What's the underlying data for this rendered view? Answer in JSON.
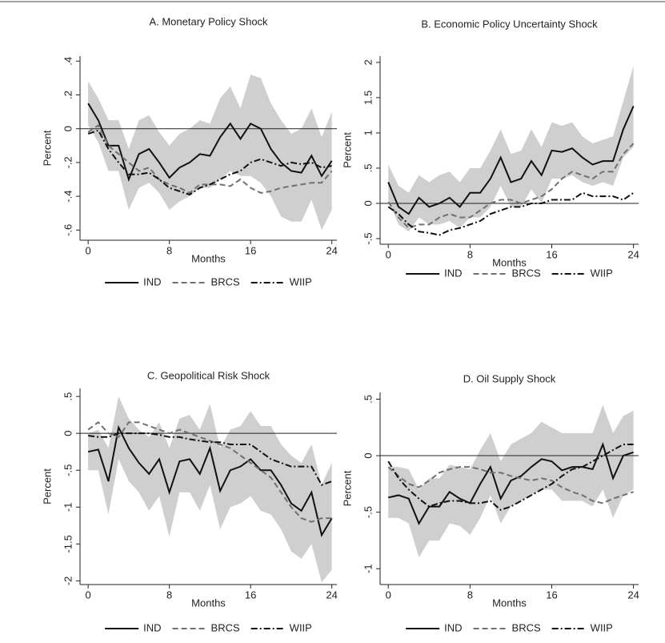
{
  "chart_data": [
    {
      "type": "line",
      "title": "A. Monetary Policy Shock",
      "xlabel": "Months",
      "ylabel": "Percent",
      "x": [
        0,
        1,
        2,
        3,
        4,
        5,
        6,
        7,
        8,
        9,
        10,
        11,
        12,
        13,
        14,
        15,
        16,
        17,
        18,
        19,
        20,
        21,
        22,
        23,
        24
      ],
      "xlim": [
        -0.8,
        24.5
      ],
      "xticks": [
        0,
        8,
        16,
        24
      ],
      "ylim": [
        -0.66,
        0.43
      ],
      "yticks": [
        {
          "value": -0.6,
          "label": "-.6"
        },
        {
          "value": -0.4,
          "label": "-.4"
        },
        {
          "value": -0.2,
          "label": "-.2"
        },
        0,
        {
          "value": 0.2,
          "label": ".2"
        },
        {
          "value": 0.4,
          "label": ".4"
        }
      ],
      "reference_line": 0,
      "band": {
        "color": "#cfcfcf",
        "upper": [
          0.28,
          0.18,
          0.05,
          0.05,
          -0.12,
          0.05,
          0.08,
          -0.02,
          -0.1,
          -0.03,
          0,
          0.05,
          0.03,
          0.18,
          0.25,
          0.12,
          0.32,
          0.3,
          0.15,
          0.05,
          -0.03,
          0,
          0.12,
          -0.05,
          0.1
        ],
        "lower": [
          0.02,
          -0.08,
          -0.25,
          -0.25,
          -0.48,
          -0.35,
          -0.32,
          -0.38,
          -0.48,
          -0.43,
          -0.4,
          -0.35,
          -0.35,
          -0.3,
          -0.25,
          -0.28,
          -0.28,
          -0.32,
          -0.4,
          -0.52,
          -0.55,
          -0.55,
          -0.42,
          -0.6,
          -0.48
        ]
      },
      "series": [
        {
          "name": "IND",
          "color": "#111111",
          "dash": "solid",
          "values": [
            0.15,
            0.05,
            -0.1,
            -0.1,
            -0.3,
            -0.15,
            -0.12,
            -0.2,
            -0.29,
            -0.23,
            -0.2,
            -0.15,
            -0.16,
            -0.05,
            0.03,
            -0.06,
            0.03,
            0,
            -0.12,
            -0.2,
            -0.25,
            -0.26,
            -0.16,
            -0.28,
            -0.19
          ]
        },
        {
          "name": "BRCS",
          "color": "#707070",
          "dash": "dashed",
          "values": [
            -0.02,
            0.02,
            -0.1,
            -0.15,
            -0.2,
            -0.25,
            -0.23,
            -0.3,
            -0.33,
            -0.35,
            -0.38,
            -0.33,
            -0.33,
            -0.33,
            -0.34,
            -0.3,
            -0.35,
            -0.38,
            -0.37,
            -0.35,
            -0.34,
            -0.33,
            -0.32,
            -0.32,
            -0.25
          ]
        },
        {
          "name": "WIIP",
          "color": "#111111",
          "dash": "dashdot",
          "values": [
            -0.03,
            -0.01,
            -0.12,
            -0.2,
            -0.27,
            -0.27,
            -0.26,
            -0.3,
            -0.35,
            -0.37,
            -0.39,
            -0.35,
            -0.33,
            -0.3,
            -0.27,
            -0.25,
            -0.2,
            -0.18,
            -0.2,
            -0.22,
            -0.2,
            -0.21,
            -0.2,
            -0.23,
            -0.22
          ]
        }
      ]
    },
    {
      "type": "line",
      "title": "B. Economic Policy Uncertainty Shock",
      "xlabel": "Months",
      "ylabel": "Percent",
      "x": [
        0,
        1,
        2,
        3,
        4,
        5,
        6,
        7,
        8,
        9,
        10,
        11,
        12,
        13,
        14,
        15,
        16,
        17,
        18,
        19,
        20,
        21,
        22,
        23,
        24
      ],
      "xlim": [
        -0.8,
        24.5
      ],
      "xticks": [
        0,
        8,
        16,
        24
      ],
      "ylim": [
        -0.58,
        2.09
      ],
      "yticks": [
        {
          "value": -0.5,
          "label": "-.5"
        },
        0,
        {
          "value": 0.5,
          "label": ".5"
        },
        1,
        1.5,
        2
      ],
      "reference_line": 0,
      "band": {
        "color": "#cfcfcf",
        "upper": [
          0.55,
          0.25,
          0.15,
          0.4,
          0.3,
          0.4,
          0.45,
          0.3,
          0.5,
          0.5,
          0.75,
          1.05,
          0.7,
          0.75,
          1.05,
          0.8,
          1.15,
          1.1,
          1.15,
          0.95,
          0.85,
          0.9,
          0.95,
          1.45,
          1.95
        ],
        "lower": [
          0.05,
          -0.3,
          -0.4,
          -0.2,
          -0.3,
          -0.3,
          -0.25,
          -0.35,
          -0.2,
          -0.2,
          -0.05,
          0.25,
          -0.05,
          -0.05,
          0.2,
          0,
          0.35,
          0.35,
          0.4,
          0.3,
          0.25,
          0.3,
          0.25,
          0.65,
          0.8
        ]
      },
      "series": [
        {
          "name": "IND",
          "color": "#111111",
          "dash": "solid",
          "values": [
            0.3,
            -0.05,
            -0.15,
            0.08,
            -0.05,
            0,
            0.08,
            -0.05,
            0.15,
            0.15,
            0.35,
            0.65,
            0.3,
            0.35,
            0.6,
            0.4,
            0.75,
            0.73,
            0.78,
            0.65,
            0.55,
            0.6,
            0.6,
            1.05,
            1.38
          ]
        },
        {
          "name": "BRCS",
          "color": "#707070",
          "dash": "dashed",
          "values": [
            0.02,
            -0.2,
            -0.35,
            -0.3,
            -0.3,
            -0.2,
            -0.15,
            -0.2,
            -0.2,
            -0.1,
            0,
            0.05,
            0.05,
            0,
            0.05,
            0.1,
            0.2,
            0.35,
            0.45,
            0.4,
            0.35,
            0.45,
            0.45,
            0.7,
            0.85
          ]
        },
        {
          "name": "WIIP",
          "color": "#111111",
          "dash": "dashdot",
          "values": [
            -0.05,
            -0.15,
            -0.3,
            -0.4,
            -0.42,
            -0.45,
            -0.38,
            -0.35,
            -0.3,
            -0.25,
            -0.15,
            -0.1,
            -0.05,
            -0.05,
            0,
            0,
            0.05,
            0.05,
            0.05,
            0.15,
            0.1,
            0.1,
            0.1,
            0.05,
            0.15
          ]
        }
      ]
    },
    {
      "type": "line",
      "title": "C. Geopolitical Risk Shock",
      "xlabel": "Months",
      "ylabel": "Percent",
      "x": [
        0,
        1,
        2,
        3,
        4,
        5,
        6,
        7,
        8,
        9,
        10,
        11,
        12,
        13,
        14,
        15,
        16,
        17,
        18,
        19,
        20,
        21,
        22,
        23,
        24
      ],
      "xlim": [
        -0.8,
        24.5
      ],
      "xticks": [
        0,
        8,
        16,
        24
      ],
      "ylim": [
        -2.05,
        0.61
      ],
      "yticks": [
        -2,
        -1.5,
        -1,
        {
          "value": -0.5,
          "label": "-.5"
        },
        0,
        {
          "value": 0.5,
          "label": ".5"
        }
      ],
      "reference_line": 0,
      "band": {
        "color": "#cfcfcf",
        "upper": [
          0,
          0.05,
          -0.2,
          0.5,
          0.2,
          0.05,
          -0.05,
          0.15,
          -0.2,
          0.2,
          0.25,
          0.05,
          0.4,
          -0.2,
          0.05,
          0.1,
          0.3,
          0.1,
          0.1,
          -0.15,
          -0.3,
          -0.4,
          -0.15,
          -0.7,
          -0.4
        ],
        "lower": [
          -0.5,
          -0.5,
          -1.1,
          -0.35,
          -0.65,
          -0.8,
          -1.05,
          -0.85,
          -1.4,
          -0.8,
          -0.8,
          -1.05,
          -0.7,
          -1.3,
          -1,
          -0.95,
          -0.85,
          -1.05,
          -1.1,
          -1.3,
          -1.6,
          -1.7,
          -1.5,
          -2.02,
          -1.85
        ]
      },
      "series": [
        {
          "name": "IND",
          "color": "#111111",
          "dash": "solid",
          "values": [
            -0.25,
            -0.22,
            -0.65,
            0.08,
            -0.2,
            -0.4,
            -0.55,
            -0.35,
            -0.8,
            -0.38,
            -0.35,
            -0.55,
            -0.2,
            -0.78,
            -0.5,
            -0.45,
            -0.35,
            -0.5,
            -0.5,
            -0.7,
            -0.95,
            -1.05,
            -0.8,
            -1.38,
            -1.15
          ]
        },
        {
          "name": "BRCS",
          "color": "#707070",
          "dash": "dashed",
          "values": [
            0.05,
            0.15,
            0,
            -0.05,
            0.15,
            0.15,
            0.1,
            0.05,
            0,
            0.05,
            0,
            -0.05,
            -0.1,
            -0.15,
            -0.2,
            -0.3,
            -0.4,
            -0.5,
            -0.6,
            -0.8,
            -1,
            -1.15,
            -1.2,
            -1.15,
            -1.15
          ]
        },
        {
          "name": "WIIP",
          "color": "#111111",
          "dash": "dashdot",
          "values": [
            -0.03,
            -0.05,
            -0.05,
            0,
            0,
            0,
            0,
            -0.02,
            -0.05,
            -0.05,
            -0.08,
            -0.1,
            -0.12,
            -0.12,
            -0.15,
            -0.15,
            -0.15,
            -0.25,
            -0.35,
            -0.4,
            -0.45,
            -0.45,
            -0.45,
            -0.7,
            -0.65
          ]
        }
      ]
    },
    {
      "type": "line",
      "title": "D. Oil Supply Shock",
      "xlabel": "Months",
      "ylabel": "Percent",
      "x": [
        0,
        1,
        2,
        3,
        4,
        5,
        6,
        7,
        8,
        9,
        10,
        11,
        12,
        13,
        14,
        15,
        16,
        17,
        18,
        19,
        20,
        21,
        22,
        23,
        24
      ],
      "xlim": [
        -0.8,
        24.5
      ],
      "xticks": [
        0,
        8,
        16,
        24
      ],
      "ylim": [
        -1.14,
        0.56
      ],
      "yticks": [
        -1,
        {
          "value": -0.5,
          "label": "-.5"
        },
        0,
        {
          "value": 0.5,
          "label": ".5"
        }
      ],
      "reference_line": 0,
      "band": {
        "color": "#cfcfcf",
        "upper": [
          -0.1,
          -0.1,
          -0.12,
          -0.3,
          -0.2,
          -0.2,
          -0.08,
          -0.1,
          -0.12,
          0.05,
          0.2,
          -0.05,
          0.1,
          0.15,
          0.2,
          0.3,
          0.25,
          0.2,
          0.2,
          0.2,
          0.2,
          0.45,
          0.2,
          0.35,
          0.4
        ],
        "lower": [
          -0.55,
          -0.55,
          -0.6,
          -0.9,
          -0.75,
          -0.75,
          -0.6,
          -0.62,
          -0.7,
          -0.55,
          -0.35,
          -0.6,
          -0.45,
          -0.4,
          -0.35,
          -0.3,
          -0.3,
          -0.4,
          -0.4,
          -0.4,
          -0.45,
          -0.3,
          -0.55,
          -0.35,
          -0.3
        ]
      },
      "series": [
        {
          "name": "IND",
          "color": "#111111",
          "dash": "solid",
          "values": [
            -0.37,
            -0.35,
            -0.38,
            -0.6,
            -0.45,
            -0.45,
            -0.32,
            -0.38,
            -0.42,
            -0.25,
            -0.1,
            -0.38,
            -0.22,
            -0.18,
            -0.1,
            -0.03,
            -0.05,
            -0.13,
            -0.1,
            -0.1,
            -0.12,
            0.1,
            -0.2,
            0,
            0.03
          ]
        },
        {
          "name": "BRCS",
          "color": "#707070",
          "dash": "dashed",
          "values": [
            -0.1,
            -0.18,
            -0.25,
            -0.28,
            -0.22,
            -0.15,
            -0.12,
            -0.1,
            -0.1,
            -0.12,
            -0.15,
            -0.15,
            -0.18,
            -0.2,
            -0.22,
            -0.2,
            -0.22,
            -0.28,
            -0.32,
            -0.35,
            -0.4,
            -0.42,
            -0.38,
            -0.35,
            -0.32
          ]
        },
        {
          "name": "WIIP",
          "color": "#111111",
          "dash": "dashdot",
          "values": [
            -0.05,
            -0.2,
            -0.3,
            -0.38,
            -0.45,
            -0.42,
            -0.4,
            -0.4,
            -0.42,
            -0.42,
            -0.4,
            -0.48,
            -0.45,
            -0.4,
            -0.35,
            -0.3,
            -0.25,
            -0.18,
            -0.12,
            -0.1,
            -0.05,
            0,
            0.05,
            0.1,
            0.1
          ]
        }
      ]
    }
  ]
}
